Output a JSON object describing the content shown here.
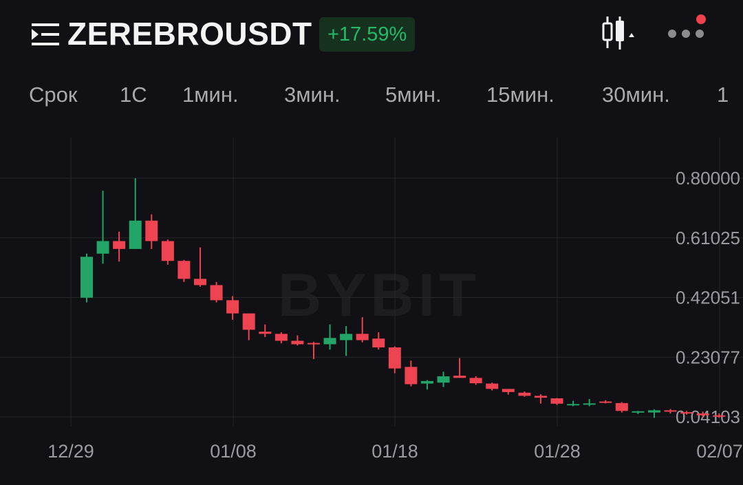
{
  "header": {
    "symbol": "ZEREBROUSDT",
    "change": "+17.59%",
    "icons": {
      "menu": "menu-icon",
      "chart_type": "candlestick-icon",
      "more": "more-dots-icon"
    },
    "colors": {
      "change_bg": "#16321f",
      "change_text": "#25b96b",
      "notification_dot": "#f0424d"
    }
  },
  "tabs": [
    {
      "label": "Срок"
    },
    {
      "label": "1С"
    },
    {
      "label": "1мин."
    },
    {
      "label": "3мин."
    },
    {
      "label": "5мин."
    },
    {
      "label": "15мин."
    },
    {
      "label": "30мин."
    },
    {
      "label": "1"
    }
  ],
  "watermark": "BYBIT",
  "chart_data": {
    "type": "candlestick",
    "title": "",
    "xlabel": "",
    "ylabel": "",
    "x_ticks": [
      "12/29",
      "01/08",
      "01/18",
      "01/28",
      "02/07"
    ],
    "y_ticks": [
      "0.80000",
      "0.61025",
      "0.42051",
      "0.23077",
      "0.04103"
    ],
    "ylim": [
      0.0,
      0.92
    ],
    "grid": true,
    "colors": {
      "up": "#23a568",
      "down": "#ee4351",
      "grid": "#26262b",
      "axis_text": "#9a9aa0"
    },
    "candles": [
      {
        "date": "01/01",
        "open": 0.42,
        "high": 0.56,
        "low": 0.405,
        "close": 0.55
      },
      {
        "date": "01/02",
        "open": 0.56,
        "high": 0.76,
        "low": 0.528,
        "close": 0.6
      },
      {
        "date": "01/03",
        "open": 0.6,
        "high": 0.63,
        "low": 0.535,
        "close": 0.575
      },
      {
        "date": "01/04",
        "open": 0.575,
        "high": 0.8,
        "low": 0.575,
        "close": 0.665
      },
      {
        "date": "01/05",
        "open": 0.665,
        "high": 0.685,
        "low": 0.575,
        "close": 0.6
      },
      {
        "date": "01/06",
        "open": 0.6,
        "high": 0.605,
        "low": 0.525,
        "close": 0.537
      },
      {
        "date": "01/07",
        "open": 0.537,
        "high": 0.54,
        "low": 0.47,
        "close": 0.48
      },
      {
        "date": "01/08",
        "open": 0.48,
        "high": 0.58,
        "low": 0.455,
        "close": 0.46
      },
      {
        "date": "01/09",
        "open": 0.46,
        "high": 0.47,
        "low": 0.405,
        "close": 0.412
      },
      {
        "date": "01/10",
        "open": 0.412,
        "high": 0.425,
        "low": 0.35,
        "close": 0.37
      },
      {
        "date": "01/11",
        "open": 0.37,
        "high": 0.37,
        "low": 0.285,
        "close": 0.318
      },
      {
        "date": "01/12",
        "open": 0.312,
        "high": 0.335,
        "low": 0.295,
        "close": 0.305
      },
      {
        "date": "01/13",
        "open": 0.305,
        "high": 0.31,
        "low": 0.275,
        "close": 0.283
      },
      {
        "date": "01/14",
        "open": 0.283,
        "high": 0.3,
        "low": 0.268,
        "close": 0.272
      },
      {
        "date": "01/15",
        "open": 0.276,
        "high": 0.28,
        "low": 0.225,
        "close": 0.275
      },
      {
        "date": "01/16",
        "open": 0.272,
        "high": 0.335,
        "low": 0.255,
        "close": 0.292
      },
      {
        "date": "01/17",
        "open": 0.285,
        "high": 0.33,
        "low": 0.235,
        "close": 0.305
      },
      {
        "date": "01/18",
        "open": 0.305,
        "high": 0.358,
        "low": 0.278,
        "close": 0.285
      },
      {
        "date": "01/19",
        "open": 0.29,
        "high": 0.31,
        "low": 0.255,
        "close": 0.262
      },
      {
        "date": "01/20",
        "open": 0.262,
        "high": 0.265,
        "low": 0.18,
        "close": 0.195
      },
      {
        "date": "01/21",
        "open": 0.2,
        "high": 0.22,
        "low": 0.138,
        "close": 0.145
      },
      {
        "date": "01/22",
        "open": 0.147,
        "high": 0.158,
        "low": 0.128,
        "close": 0.155
      },
      {
        "date": "01/23",
        "open": 0.15,
        "high": 0.185,
        "low": 0.136,
        "close": 0.17
      },
      {
        "date": "01/24",
        "open": 0.172,
        "high": 0.228,
        "low": 0.165,
        "close": 0.165
      },
      {
        "date": "01/25",
        "open": 0.165,
        "high": 0.17,
        "low": 0.143,
        "close": 0.148
      },
      {
        "date": "01/26",
        "open": 0.147,
        "high": 0.15,
        "low": 0.125,
        "close": 0.13
      },
      {
        "date": "01/27",
        "open": 0.13,
        "high": 0.13,
        "low": 0.112,
        "close": 0.12
      },
      {
        "date": "01/28",
        "open": 0.118,
        "high": 0.122,
        "low": 0.105,
        "close": 0.108
      },
      {
        "date": "01/29",
        "open": 0.108,
        "high": 0.113,
        "low": 0.083,
        "close": 0.102
      },
      {
        "date": "01/30",
        "open": 0.1,
        "high": 0.101,
        "low": 0.079,
        "close": 0.083
      },
      {
        "date": "01/31",
        "open": 0.08,
        "high": 0.092,
        "low": 0.075,
        "close": 0.082
      },
      {
        "date": "02/01",
        "open": 0.08,
        "high": 0.098,
        "low": 0.075,
        "close": 0.084
      },
      {
        "date": "02/02",
        "open": 0.09,
        "high": 0.094,
        "low": 0.084,
        "close": 0.088
      },
      {
        "date": "02/03",
        "open": 0.085,
        "high": 0.088,
        "low": 0.055,
        "close": 0.06
      },
      {
        "date": "02/04",
        "open": 0.058,
        "high": 0.06,
        "low": 0.05,
        "close": 0.059
      },
      {
        "date": "02/05",
        "open": 0.055,
        "high": 0.065,
        "low": 0.038,
        "close": 0.062
      },
      {
        "date": "02/06",
        "open": 0.062,
        "high": 0.066,
        "low": 0.052,
        "close": 0.058
      },
      {
        "date": "02/07",
        "open": 0.056,
        "high": 0.06,
        "low": 0.048,
        "close": 0.052
      },
      {
        "date": "02/08",
        "open": 0.052,
        "high": 0.058,
        "low": 0.04,
        "close": 0.046
      },
      {
        "date": "02/09",
        "open": 0.046,
        "high": 0.052,
        "low": 0.038,
        "close": 0.043
      }
    ]
  }
}
